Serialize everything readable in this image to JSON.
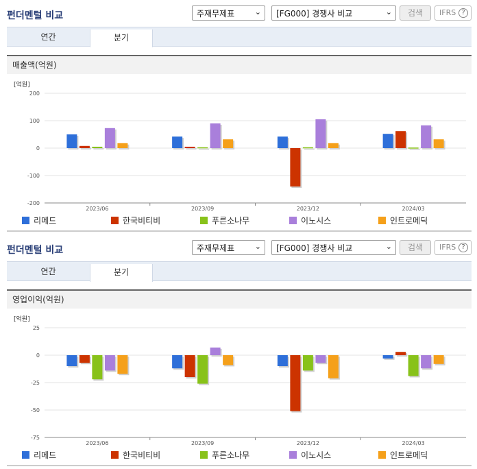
{
  "panels": [
    {
      "title": "펀더멘털 비교",
      "statement_select": "주재무제표",
      "compare_select": "[FG000] 경쟁사 비교",
      "search_label": "검색",
      "ifrs_label": "IFRS",
      "help_glyph": "?",
      "tabs": [
        "연간",
        "분기"
      ],
      "active_tab": 1,
      "metric_title": "매출액(억원)",
      "unit": "[억원]"
    },
    {
      "title": "펀더멘털 비교",
      "statement_select": "주재무제표",
      "compare_select": "[FG000] 경쟁사 비교",
      "search_label": "검색",
      "ifrs_label": "IFRS",
      "help_glyph": "?",
      "tabs": [
        "연간",
        "분기"
      ],
      "active_tab": 1,
      "metric_title": "영업이익(억원)",
      "unit": "[억원]"
    }
  ],
  "chart_data": [
    {
      "type": "bar",
      "title": "매출액(억원)",
      "ylabel": "[억원]",
      "categories": [
        "2023/06",
        "2023/09",
        "2023/12",
        "2024/03"
      ],
      "yticks": [
        200,
        100,
        0,
        -100,
        -200
      ],
      "ylim": [
        -200,
        200
      ],
      "series": [
        {
          "name": "리메드",
          "color": "#2e6fd9",
          "values": [
            50,
            42,
            42,
            52
          ]
        },
        {
          "name": "한국비티비",
          "color": "#cc3300",
          "values": [
            8,
            5,
            -140,
            62
          ]
        },
        {
          "name": "푸른소나무",
          "color": "#88c21a",
          "values": [
            5,
            3,
            3,
            2
          ]
        },
        {
          "name": "이노시스",
          "color": "#a97fdb",
          "values": [
            73,
            90,
            105,
            83
          ]
        },
        {
          "name": "인트로메딕",
          "color": "#f5a01a",
          "values": [
            18,
            32,
            18,
            32
          ]
        }
      ]
    },
    {
      "type": "bar",
      "title": "영업이익(억원)",
      "ylabel": "[억원]",
      "categories": [
        "2023/06",
        "2023/09",
        "2023/12",
        "2024/03"
      ],
      "yticks": [
        25,
        0,
        -25,
        -50,
        -75
      ],
      "ylim": [
        -75,
        25
      ],
      "series": [
        {
          "name": "리메드",
          "color": "#2e6fd9",
          "values": [
            -10,
            -12,
            -10,
            -3
          ]
        },
        {
          "name": "한국비티비",
          "color": "#cc3300",
          "values": [
            -7,
            -20,
            -51,
            3
          ]
        },
        {
          "name": "푸른소나무",
          "color": "#88c21a",
          "values": [
            -22,
            -26,
            -14,
            -19
          ]
        },
        {
          "name": "이노시스",
          "color": "#a97fdb",
          "values": [
            -14,
            7,
            -7,
            -12
          ]
        },
        {
          "name": "인트로메딕",
          "color": "#f5a01a",
          "values": [
            -17,
            -9,
            -21,
            -8
          ]
        }
      ]
    }
  ]
}
